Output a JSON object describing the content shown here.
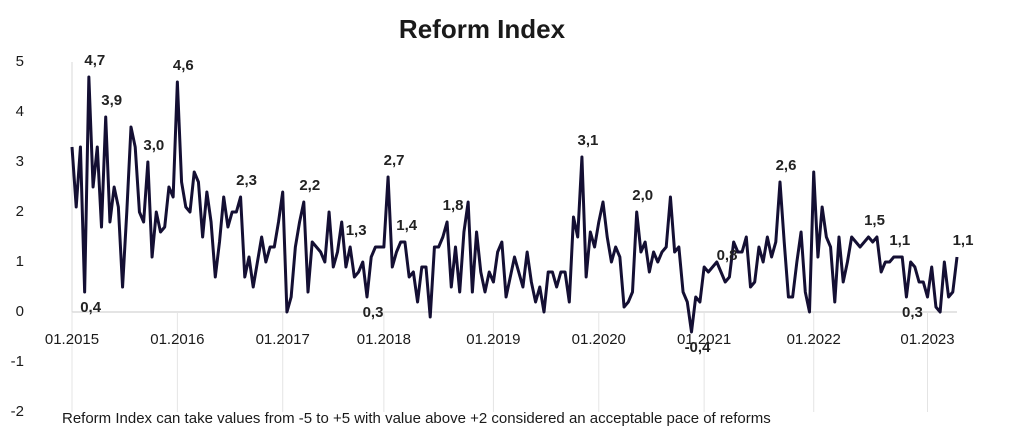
{
  "chart_data": {
    "type": "line",
    "title": "Reform Index",
    "note": "Reform Index can take values from -5 to +5 with value above +2 considered an acceptable pace of reforms",
    "color": "#140f33",
    "ylim": [
      -2,
      5
    ],
    "yticks": [
      -2,
      -1,
      0,
      1,
      2,
      3,
      4,
      5
    ],
    "categories": [
      "01.2015",
      null,
      null,
      null,
      null,
      null,
      null,
      null,
      null,
      null,
      null,
      null,
      null,
      null,
      null,
      null,
      null,
      null,
      null,
      null,
      null,
      null,
      null,
      null,
      null,
      "01.2016",
      null,
      null,
      null,
      null,
      null,
      null,
      null,
      null,
      null,
      null,
      null,
      null,
      null,
      null,
      null,
      null,
      null,
      null,
      null,
      null,
      null,
      null,
      null,
      null,
      "01.2017",
      null,
      null,
      null,
      null,
      null,
      null,
      null,
      null,
      null,
      null,
      null,
      null,
      null,
      null,
      null,
      null,
      null,
      null,
      null,
      null,
      null,
      null,
      null,
      "01.2018",
      null,
      null,
      null,
      null,
      null,
      null,
      null,
      null,
      null,
      null,
      null,
      null,
      null,
      null,
      null,
      null,
      null,
      null,
      null,
      null,
      null,
      null,
      null,
      null,
      null,
      "01.2019",
      null,
      null,
      null,
      null,
      null,
      null,
      null,
      null,
      null,
      null,
      null,
      null,
      null,
      null,
      null,
      null,
      null,
      null,
      null,
      null,
      null,
      null,
      null,
      null,
      "01.2020",
      null,
      null,
      null,
      null,
      null,
      null,
      null,
      null,
      null,
      null,
      null,
      null,
      null,
      null,
      null,
      null,
      null,
      null,
      null,
      null,
      null,
      null,
      null,
      null,
      "01.2021",
      null,
      null,
      null,
      null,
      null,
      null,
      null,
      null,
      null,
      null,
      null,
      null,
      null,
      null,
      null,
      null,
      null,
      null,
      null,
      null,
      null,
      null,
      null,
      null,
      null,
      "01.2022",
      null,
      null,
      null,
      null,
      null,
      null,
      null,
      null,
      null,
      null,
      null,
      null,
      null,
      null,
      null,
      null,
      null,
      null,
      null,
      null,
      null,
      null,
      null,
      null,
      null,
      null,
      "01.2023",
      null,
      null,
      null,
      null,
      null,
      null,
      null
    ],
    "values": [
      3.3,
      2.1,
      3.3,
      0.4,
      4.7,
      2.5,
      3.3,
      1.7,
      3.9,
      1.8,
      2.5,
      2.1,
      0.5,
      2.0,
      3.7,
      3.3,
      2.0,
      1.8,
      3.0,
      1.1,
      2.0,
      1.6,
      1.7,
      2.5,
      2.3,
      4.6,
      2.6,
      2.1,
      2.0,
      2.8,
      2.6,
      1.5,
      2.4,
      1.8,
      0.7,
      1.4,
      2.3,
      1.7,
      2.0,
      2.0,
      2.3,
      0.7,
      1.1,
      0.5,
      1.0,
      1.5,
      1.0,
      1.3,
      1.3,
      1.8,
      2.4,
      0.0,
      0.3,
      1.3,
      1.8,
      2.2,
      0.4,
      1.4,
      1.3,
      1.2,
      1.0,
      2.0,
      0.9,
      1.2,
      1.8,
      0.9,
      1.3,
      0.7,
      0.8,
      1.0,
      0.3,
      1.1,
      1.3,
      1.3,
      1.3,
      2.7,
      0.9,
      1.2,
      1.4,
      1.4,
      0.7,
      0.8,
      0.2,
      0.9,
      0.9,
      -0.1,
      1.3,
      1.3,
      1.5,
      1.8,
      0.5,
      1.3,
      0.4,
      1.6,
      2.2,
      0.4,
      1.6,
      0.8,
      0.4,
      0.8,
      0.6,
      1.2,
      1.4,
      0.3,
      0.7,
      1.1,
      0.8,
      0.5,
      1.2,
      0.6,
      0.2,
      0.5,
      0.0,
      0.8,
      0.8,
      0.5,
      0.8,
      0.8,
      0.2,
      1.9,
      1.5,
      3.1,
      0.7,
      1.6,
      1.3,
      1.8,
      2.2,
      1.5,
      1.0,
      1.3,
      1.1,
      0.1,
      0.2,
      0.4,
      2.0,
      1.2,
      1.4,
      0.8,
      1.2,
      1.0,
      1.2,
      1.3,
      2.3,
      1.2,
      1.3,
      0.4,
      0.2,
      -0.4,
      0.3,
      0.2,
      0.9,
      0.8,
      0.9,
      1.0,
      0.8,
      0.6,
      0.7,
      1.4,
      1.2,
      1.2,
      1.5,
      0.5,
      0.6,
      1.3,
      1.0,
      1.5,
      1.1,
      1.4,
      2.6,
      1.4,
      0.3,
      0.3,
      1.0,
      1.6,
      0.4,
      0.0,
      2.8,
      1.1,
      2.1,
      1.5,
      1.3,
      0.2,
      1.5,
      0.6,
      1.0,
      1.5,
      1.4,
      1.3,
      1.4,
      1.5,
      1.4,
      1.5,
      0.8,
      1.0,
      1.0,
      1.1,
      1.1,
      1.1,
      0.3,
      1.0,
      0.9,
      0.6,
      0.6,
      0.3,
      0.9,
      0.1,
      0.0,
      1.0,
      0.3,
      0.4,
      1.1
    ],
    "value_labels": [
      null,
      null,
      null,
      "0,4",
      "4,7",
      null,
      null,
      null,
      "3,9",
      null,
      null,
      null,
      null,
      null,
      null,
      null,
      null,
      null,
      "3,0",
      null,
      null,
      null,
      null,
      null,
      null,
      "4,6",
      null,
      null,
      null,
      null,
      null,
      null,
      null,
      null,
      null,
      null,
      null,
      null,
      null,
      null,
      "2,3",
      null,
      null,
      null,
      null,
      null,
      null,
      null,
      null,
      null,
      null,
      null,
      null,
      null,
      null,
      "2,2",
      null,
      null,
      null,
      null,
      null,
      null,
      null,
      null,
      null,
      null,
      "1,3",
      null,
      null,
      null,
      "0,3",
      null,
      null,
      null,
      null,
      "2,7",
      null,
      null,
      "1,4",
      null,
      null,
      null,
      null,
      null,
      null,
      null,
      null,
      null,
      null,
      "1,8",
      null,
      null,
      null,
      null,
      null,
      null,
      null,
      null,
      null,
      null,
      null,
      null,
      null,
      null,
      null,
      null,
      null,
      null,
      null,
      null,
      null,
      null,
      null,
      null,
      null,
      null,
      null,
      null,
      null,
      null,
      null,
      "3,1",
      null,
      null,
      null,
      null,
      null,
      null,
      null,
      null,
      null,
      null,
      null,
      null,
      "2,0",
      null,
      null,
      null,
      null,
      null,
      null,
      null,
      null,
      null,
      null,
      null,
      null,
      "-0,4",
      null,
      null,
      null,
      null,
      null,
      null,
      "0,8",
      null,
      null,
      null,
      null,
      null,
      null,
      null,
      null,
      null,
      null,
      null,
      null,
      null,
      "2,6",
      null,
      null,
      null,
      null,
      null,
      null,
      null,
      null,
      null,
      null,
      null,
      null,
      null,
      null,
      null,
      null,
      null,
      null,
      null,
      null,
      "1,5",
      null,
      null,
      null,
      null,
      null,
      "1,1",
      null,
      null,
      "0,3",
      null,
      null,
      null,
      null,
      null,
      null,
      null,
      null,
      null,
      null,
      null,
      "1,1"
    ]
  }
}
